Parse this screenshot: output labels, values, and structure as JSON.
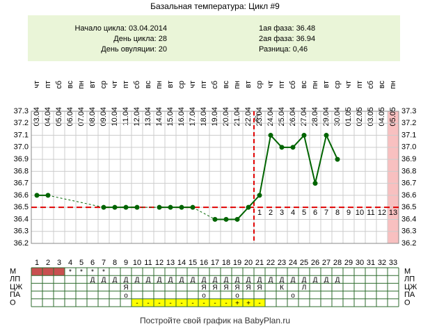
{
  "chart_data": {
    "type": "line",
    "title": "Базальная температура: Цикл #9",
    "summary_left": [
      "Начало цикла: 03.04.2014",
      "День цикла: 28",
      "День овуляции: 20"
    ],
    "summary_right": [
      "1ая фаза: 36.48",
      "2ая фаза: 36.94",
      "Разница: 0,46"
    ],
    "categories": [
      1,
      2,
      3,
      4,
      5,
      6,
      7,
      8,
      9,
      10,
      11,
      12,
      13,
      14,
      15,
      16,
      17,
      18,
      19,
      20,
      21,
      22,
      23,
      24,
      25,
      26,
      27,
      28,
      29,
      30,
      31,
      32,
      33
    ],
    "weekdays": [
      "чт",
      "пт",
      "сб",
      "вс",
      "пн",
      "вт",
      "ср",
      "чт",
      "пт",
      "сб",
      "вс",
      "пн",
      "вт",
      "ср",
      "чт",
      "пт",
      "сб",
      "вс",
      "пн",
      "вт",
      "ср",
      "чт",
      "пт",
      "сб",
      "вс",
      "пн",
      "вт",
      "ср",
      "чт",
      "пт",
      "сб",
      "вс",
      "пн"
    ],
    "dates": [
      "03.04",
      "04.04",
      "05.04",
      "06.04",
      "07.04",
      "08.04",
      "09.04",
      "10.04",
      "11.04",
      "12.04",
      "13.04",
      "14.04",
      "15.04",
      "16.04",
      "17.04",
      "18.04",
      "19.04",
      "20.04",
      "21.04",
      "22.04",
      "23.04",
      "24.04",
      "25.04",
      "26.04",
      "27.04",
      "28.04",
      "29.04",
      "30.04",
      "01.05",
      "02.05",
      "03.05",
      "04.05",
      "05.05"
    ],
    "values": [
      36.6,
      36.6,
      null,
      null,
      null,
      null,
      36.5,
      36.5,
      36.5,
      36.5,
      null,
      36.5,
      36.5,
      36.5,
      36.5,
      null,
      36.4,
      36.4,
      36.4,
      36.5,
      36.6,
      37.1,
      37.0,
      37.0,
      37.1,
      36.7,
      37.1,
      36.9,
      null,
      null,
      null,
      null,
      null
    ],
    "color": "#006400",
    "ylim": [
      36.2,
      37.3
    ],
    "yticks": [
      36.2,
      36.3,
      36.4,
      36.5,
      36.6,
      36.7,
      36.8,
      36.9,
      {
        "value": 37,
        "label": "37.0"
      },
      37.1,
      37.2,
      37.3
    ],
    "grid": true,
    "coverline": 36.5,
    "ovulation_day": 20,
    "luteal_days": [
      1,
      2,
      3,
      4,
      5,
      6,
      7,
      8,
      9,
      10,
      11,
      12,
      13
    ],
    "shaded_days": [
      33
    ],
    "moon_day": 21,
    "table": {
      "rows": [
        {
          "label": "М",
          "filled": [
            1,
            2,
            3
          ],
          "fill": "#c85050",
          "cells": [
            null,
            null,
            null,
            "*",
            "*",
            "*",
            "*",
            null,
            null,
            null,
            null,
            null,
            null,
            null,
            null,
            null,
            null,
            null,
            null,
            null,
            null,
            null,
            null,
            null,
            null,
            null,
            null,
            null,
            null,
            null,
            null,
            null,
            null
          ]
        },
        {
          "label": "ЛП",
          "cells": [
            null,
            null,
            null,
            null,
            null,
            "Д",
            "Д",
            "Д",
            "Д",
            "Д",
            "Д",
            "Д",
            "Д",
            "Д",
            "Д",
            "Д",
            "Д",
            "Д",
            "Д",
            "Д",
            "Д",
            "Д",
            "Д",
            "Д",
            "Д",
            "Д",
            "Д",
            "Д",
            null,
            null,
            null,
            null,
            null
          ]
        },
        {
          "label": "ЦЖ",
          "cells": [
            null,
            null,
            null,
            null,
            null,
            null,
            null,
            null,
            "Я",
            null,
            null,
            null,
            null,
            null,
            null,
            "Я",
            "Я",
            "Я",
            "Я",
            "Я",
            "Я",
            null,
            "К",
            null,
            "Л",
            null,
            null,
            null,
            null,
            null,
            null,
            null,
            null
          ]
        },
        {
          "label": "ПА",
          "cells": [
            null,
            null,
            null,
            null,
            null,
            null,
            null,
            null,
            "о",
            null,
            null,
            null,
            null,
            null,
            null,
            "о",
            null,
            null,
            "о",
            null,
            null,
            null,
            null,
            "о",
            null,
            null,
            null,
            null,
            null,
            null,
            null,
            null,
            null
          ]
        },
        {
          "label": "О",
          "filled": [
            10,
            11,
            12,
            13,
            14,
            15,
            16,
            17,
            18,
            19,
            20,
            21
          ],
          "fill": "#ffff00",
          "cells": [
            null,
            null,
            null,
            null,
            null,
            null,
            null,
            null,
            null,
            "-",
            "-",
            "-",
            "-",
            "-",
            "-",
            "-",
            "-",
            "-",
            "+",
            "+",
            "-",
            null,
            null,
            null,
            null,
            null,
            null,
            null,
            null,
            null,
            null,
            null,
            null
          ]
        }
      ]
    },
    "footer": "Постройте свой график на BabyPlan.ru"
  }
}
